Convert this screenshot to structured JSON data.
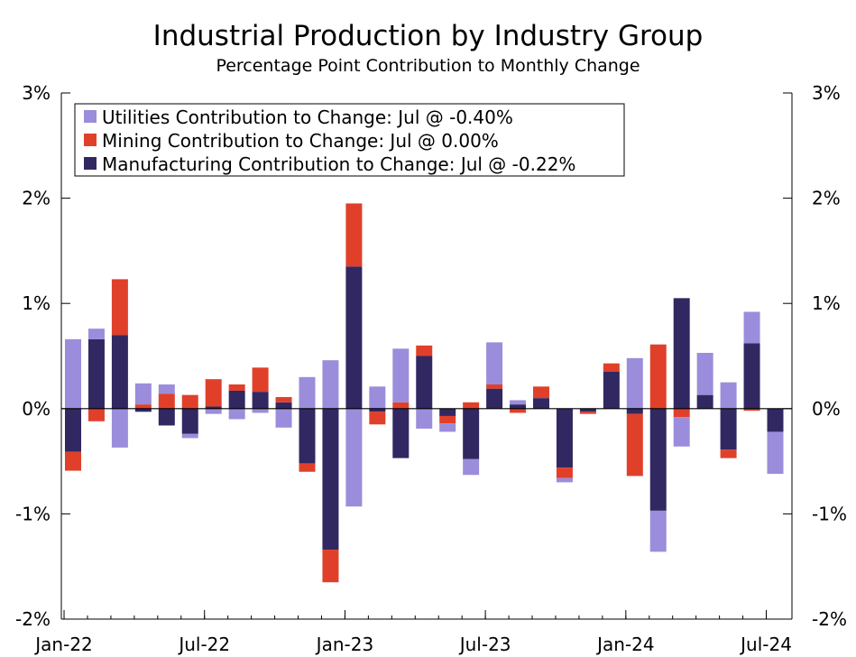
{
  "chart_data": {
    "type": "bar",
    "stacked": true,
    "title": "Industrial Production by Industry Group",
    "subtitle": "Percentage Point Contribution to Monthly Change",
    "xlabel": "",
    "ylabel": "",
    "ylim": [
      -2,
      3
    ],
    "y_ticks": [
      "-2%",
      "-1%",
      "0%",
      "1%",
      "2%",
      "3%"
    ],
    "y_tick_values": [
      -2,
      -1,
      0,
      1,
      2,
      3
    ],
    "x_tick_labels": [
      "Jan-22",
      "Jul-22",
      "Jan-23",
      "Jul-23",
      "Jan-24",
      "Jul-24"
    ],
    "x_tick_months": [
      "Jan-22",
      "Jul-22",
      "Jan-23",
      "Jul-23",
      "Jan-24",
      "Jul-24"
    ],
    "categories": [
      "Jan-22",
      "Feb-22",
      "Mar-22",
      "Apr-22",
      "May-22",
      "Jun-22",
      "Jul-22",
      "Aug-22",
      "Sep-22",
      "Oct-22",
      "Nov-22",
      "Dec-22",
      "Jan-23",
      "Feb-23",
      "Mar-23",
      "Apr-23",
      "May-23",
      "Jun-23",
      "Jul-23",
      "Aug-23",
      "Sep-23",
      "Oct-23",
      "Nov-23",
      "Dec-23",
      "Jan-24",
      "Feb-24",
      "Mar-24",
      "Apr-24",
      "May-24",
      "Jun-24",
      "Jul-24"
    ],
    "legend_position": "top-left",
    "grid": false,
    "series": [
      {
        "name": "Utilities Contribution to Change: Jul @ -0.40%",
        "color": "#9b8ddb",
        "values": [
          0.66,
          0.1,
          -0.37,
          0.2,
          0.09,
          -0.04,
          -0.05,
          -0.1,
          -0.04,
          -0.18,
          0.3,
          0.46,
          -0.93,
          0.21,
          0.51,
          -0.19,
          -0.08,
          -0.15,
          0.4,
          0.04,
          0.0,
          -0.04,
          0.0,
          0.0,
          0.48,
          -0.39,
          -0.28,
          0.4,
          0.25,
          0.3,
          -0.4
        ]
      },
      {
        "name": "Mining Contribution to Change: Jul @ 0.00%",
        "color": "#e0402a",
        "values": [
          -0.18,
          -0.12,
          0.53,
          0.04,
          0.14,
          0.13,
          0.26,
          0.06,
          0.23,
          0.05,
          -0.08,
          -0.31,
          0.6,
          -0.12,
          0.06,
          0.1,
          -0.07,
          0.06,
          0.04,
          -0.04,
          0.11,
          -0.1,
          -0.02,
          0.08,
          -0.59,
          0.61,
          -0.08,
          0.0,
          -0.08,
          -0.02,
          0.0
        ]
      },
      {
        "name": "Manufacturing Contribution to Change: Jul @ -0.22%",
        "color": "#312862",
        "values": [
          -0.41,
          0.66,
          0.7,
          -0.03,
          -0.16,
          -0.24,
          0.02,
          0.17,
          0.16,
          0.06,
          -0.52,
          -1.34,
          1.35,
          -0.03,
          -0.47,
          0.5,
          -0.07,
          -0.48,
          0.19,
          0.04,
          0.1,
          -0.56,
          -0.03,
          0.35,
          -0.05,
          -0.97,
          1.05,
          0.13,
          -0.39,
          0.62,
          -0.22
        ]
      }
    ]
  }
}
